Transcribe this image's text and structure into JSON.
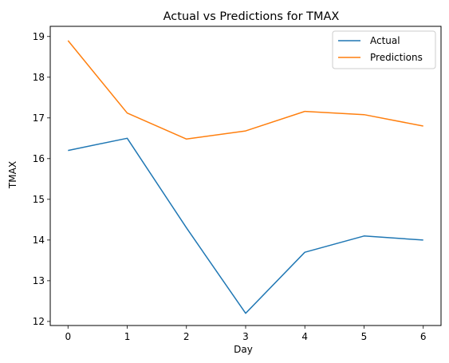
{
  "chart_data": {
    "type": "line",
    "title": "Actual vs Predictions for TMAX",
    "xlabel": "Day",
    "ylabel": "TMAX",
    "x": [
      0,
      1,
      2,
      3,
      4,
      5,
      6
    ],
    "xlim": [
      -0.3,
      6.3
    ],
    "ylim": [
      11.9,
      19.25
    ],
    "xticks": [
      0,
      1,
      2,
      3,
      4,
      5,
      6
    ],
    "yticks": [
      12,
      13,
      14,
      15,
      16,
      17,
      18,
      19
    ],
    "grid": false,
    "legend_position": "top-right",
    "series": [
      {
        "name": "Actual",
        "color": "#1f77b4",
        "values": [
          16.2,
          16.5,
          14.3,
          12.2,
          13.7,
          14.1,
          14.0
        ]
      },
      {
        "name": "Predictions",
        "color": "#ff7f0e",
        "values": [
          18.9,
          17.12,
          16.48,
          16.68,
          17.16,
          17.08,
          16.8
        ]
      }
    ]
  }
}
